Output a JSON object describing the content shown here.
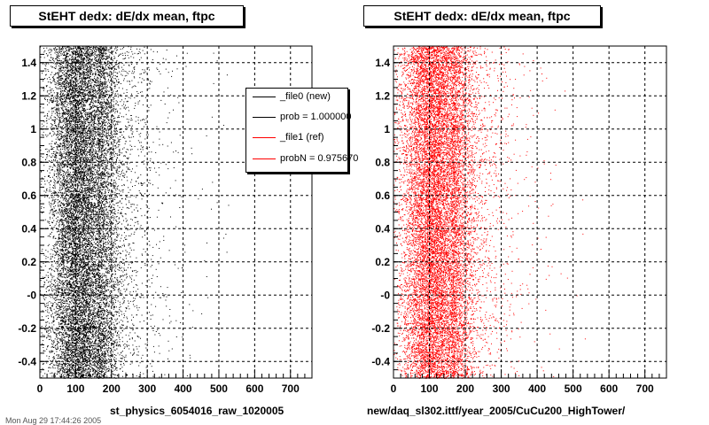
{
  "chart_data": [
    {
      "type": "scatter",
      "title": "StEHT dedx: dE/dx mean, ftpc",
      "xlabel": "st_physics_6054016_raw_1020005",
      "ylabel": "",
      "xlim": [
        0,
        760
      ],
      "ylim": [
        -0.5,
        1.5
      ],
      "xticks": [
        "0",
        "100",
        "200",
        "300",
        "400",
        "500",
        "600",
        "700"
      ],
      "yticks": [
        "-0.4",
        "-0.2",
        "-0",
        "0.2",
        "0.4",
        "0.6",
        "0.8",
        "1",
        "1.2",
        "1.4"
      ],
      "grid": true,
      "marker_color": "#000000",
      "distribution": {
        "peak_x": 110,
        "core_width": 45,
        "tail_extent_x": 700
      }
    },
    {
      "type": "scatter",
      "title": "StEHT dedx: dE/dx mean, ftpc",
      "xlabel": "new/daq_sl302.ittf/year_2005/CuCu200_HighTower/",
      "ylabel": "",
      "xlim": [
        0,
        760
      ],
      "ylim": [
        -0.5,
        1.5
      ],
      "xticks": [
        "0",
        "100",
        "200",
        "300",
        "400",
        "500",
        "600",
        "700"
      ],
      "yticks": [
        "-0.4",
        "-0.2",
        "-0",
        "0.2",
        "0.4",
        "0.6",
        "0.8",
        "1",
        "1.2",
        "1.4"
      ],
      "grid": true,
      "marker_color": "#ff0000",
      "distribution": {
        "peak_x": 110,
        "core_width": 45,
        "tail_extent_x": 700
      }
    }
  ],
  "legend": {
    "placement": "top-right of left panel",
    "entries": [
      {
        "label": "_file0 (new)",
        "color": "#000000"
      },
      {
        "label": "prob = 1.000000",
        "color": "#000000"
      },
      {
        "label": "_file1 (ref)",
        "color": "#ff0000"
      },
      {
        "label": "probN = 0.975670",
        "color": "#ff0000"
      }
    ]
  },
  "footer_text": "Mon Aug 29 17:44:26 2005"
}
